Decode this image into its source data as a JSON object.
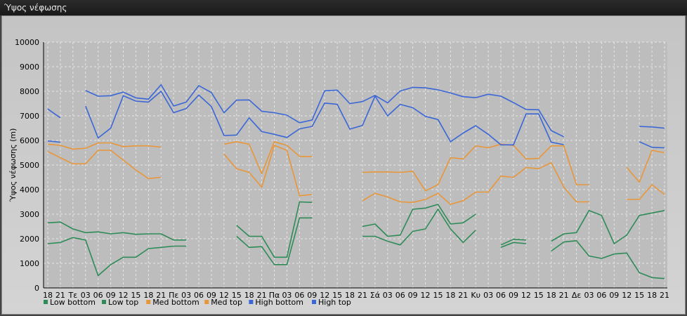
{
  "window": {
    "title": "Ύψος νέφωσης"
  },
  "chart_data": {
    "type": "line",
    "title": "",
    "ylabel": "Ύψος νέφωσης (m)",
    "ylim": [
      0,
      10000
    ],
    "yticks": [
      0,
      1000,
      2000,
      3000,
      4000,
      5000,
      6000,
      7000,
      8000,
      9000,
      10000
    ],
    "grid": true,
    "legend_position": "bottom-left",
    "categories": [
      "18",
      "21",
      "Τε",
      "03",
      "06",
      "09",
      "12",
      "15",
      "18",
      "21",
      "Πε",
      "03",
      "06",
      "09",
      "12",
      "15",
      "18",
      "21",
      "Πα",
      "03",
      "06",
      "09",
      "12",
      "15",
      "18",
      "21",
      "Σά",
      "03",
      "06",
      "09",
      "12",
      "15",
      "18",
      "21",
      "Κυ",
      "03",
      "06",
      "09",
      "12",
      "15",
      "18",
      "21",
      "Δε",
      "03",
      "06",
      "09",
      "12",
      "15",
      "18",
      "21"
    ],
    "series": [
      {
        "name": "Low bottom",
        "color": "#2e8b57",
        "values": [
          1800,
          1850,
          2050,
          1950,
          500,
          950,
          1250,
          1250,
          1600,
          1650,
          1700,
          1700,
          null,
          null,
          null,
          2100,
          1650,
          1680,
          950,
          950,
          2850,
          2850,
          null,
          null,
          null,
          2100,
          2100,
          1900,
          1750,
          2300,
          2400,
          3200,
          2400,
          1850,
          2350,
          null,
          1650,
          1850,
          1800,
          null,
          1500,
          1870,
          1920,
          1300,
          1200,
          1380,
          1420,
          620,
          420,
          380
        ]
      },
      {
        "name": "Low top",
        "color": "#2e8b57",
        "values": [
          2650,
          2680,
          2400,
          2250,
          2280,
          2200,
          2250,
          2180,
          2200,
          2200,
          1950,
          1950,
          null,
          null,
          null,
          2550,
          2100,
          2100,
          1250,
          1250,
          3500,
          3480,
          null,
          null,
          null,
          2500,
          2600,
          2100,
          2150,
          3200,
          3250,
          3400,
          2600,
          2650,
          3000,
          null,
          1750,
          1980,
          1950,
          null,
          1900,
          2200,
          2250,
          3150,
          2950,
          1800,
          2150,
          2950,
          3050,
          3150
        ]
      },
      {
        "name": "Med bottom",
        "color": "#e8963a",
        "values": [
          5550,
          5300,
          5050,
          5050,
          5600,
          5600,
          5200,
          4800,
          4450,
          4500,
          null,
          null,
          null,
          null,
          5450,
          4850,
          4700,
          4100,
          5800,
          5600,
          3750,
          3800,
          null,
          null,
          null,
          3550,
          3850,
          3700,
          3500,
          3480,
          3600,
          3850,
          3400,
          3550,
          3900,
          3900,
          4550,
          4500,
          4900,
          4850,
          5100,
          4100,
          3500,
          3500,
          null,
          null,
          3600,
          3600,
          4200,
          3800
        ]
      },
      {
        "name": "Med top",
        "color": "#e8963a",
        "values": [
          5850,
          5800,
          5650,
          5680,
          5900,
          5900,
          5750,
          5780,
          5780,
          5730,
          null,
          null,
          null,
          null,
          5850,
          5950,
          5850,
          4650,
          5950,
          5800,
          5350,
          5350,
          null,
          null,
          null,
          4700,
          4720,
          4720,
          4700,
          4750,
          3950,
          4200,
          5300,
          5250,
          5780,
          5700,
          5850,
          5800,
          5250,
          5270,
          5780,
          5780,
          4200,
          4200,
          null,
          null,
          4900,
          4300,
          5600,
          5500
        ]
      },
      {
        "name": "High bottom",
        "color": "#3a66d6",
        "values": [
          5980,
          5930,
          null,
          7400,
          6100,
          6500,
          7820,
          7600,
          7560,
          8000,
          7130,
          7300,
          7850,
          7380,
          6200,
          6220,
          6920,
          6360,
          6250,
          6120,
          6470,
          6570,
          7520,
          7470,
          6460,
          6610,
          7800,
          7000,
          7470,
          7330,
          6980,
          6850,
          5950,
          6300,
          6600,
          6250,
          5820,
          5820,
          7080,
          7080,
          5930,
          5830,
          null,
          null,
          null,
          null,
          null,
          5950,
          5720,
          5700
        ]
      },
      {
        "name": "High top",
        "color": "#3a66d6",
        "values": [
          7280,
          6920,
          null,
          8030,
          7800,
          7820,
          7970,
          7730,
          7680,
          8270,
          7400,
          7560,
          8230,
          7950,
          7130,
          7640,
          7650,
          7190,
          7130,
          7030,
          6720,
          6830,
          8020,
          8050,
          7500,
          7580,
          7830,
          7530,
          8010,
          8160,
          8140,
          8060,
          7930,
          7780,
          7740,
          7880,
          7800,
          7540,
          7260,
          7250,
          6400,
          6150,
          null,
          null,
          null,
          null,
          null,
          6570,
          6550,
          6500
        ]
      }
    ]
  }
}
